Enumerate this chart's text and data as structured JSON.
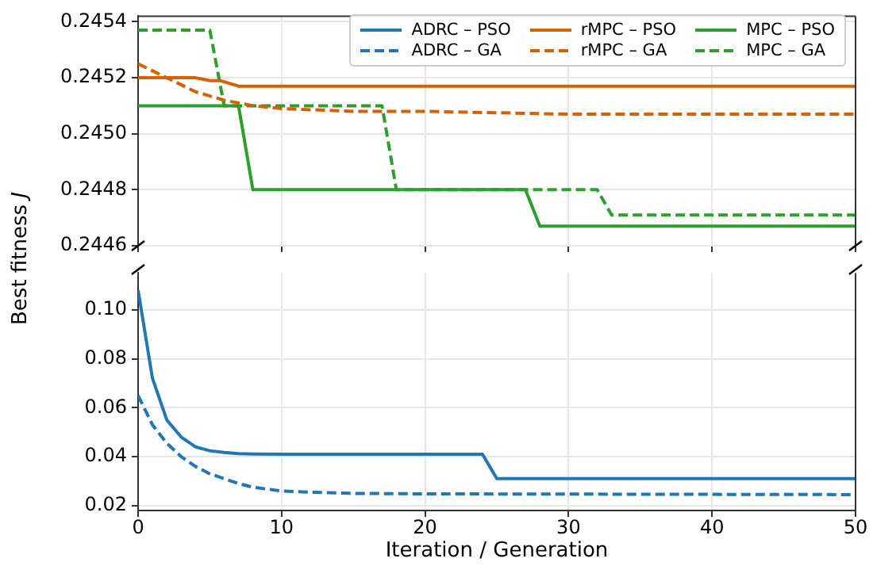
{
  "chart_data": [
    {
      "type": "line",
      "ylabel": "Best fitness J",
      "xlim": [
        0,
        50
      ],
      "xticks": [
        0,
        10,
        20,
        30,
        40,
        50
      ],
      "ylim": [
        0.2446,
        0.24542
      ],
      "yticks": [
        0.2446,
        0.2448,
        {
          "value": 0.245,
          "label": "0.2450"
        },
        0.2452,
        0.2454
      ],
      "grid": true,
      "legend": "top right",
      "tick_labels": "y",
      "marker": "none",
      "series": [
        {
          "name": "rMPC – PSO",
          "color": "#d95f02",
          "line_style": "solid",
          "x": [
            0,
            4,
            5,
            5.7,
            7,
            50
          ],
          "values": [
            0.2452,
            0.2452,
            0.24519,
            0.24519,
            0.24517,
            0.24517
          ]
        },
        {
          "name": "rMPC – GA",
          "color": "#d95f02",
          "line_style": "dashed",
          "x": [
            0,
            2,
            4,
            6,
            8,
            10,
            15,
            20,
            30,
            50
          ],
          "values": [
            0.24525,
            0.2452,
            0.24515,
            0.24512,
            0.2451,
            0.24509,
            0.24508,
            0.24508,
            0.24507,
            0.24507
          ]
        },
        {
          "name": "MPC – PSO",
          "color": "#2ca02c",
          "line_style": "solid",
          "x": [
            0,
            7,
            8,
            27,
            28,
            50
          ],
          "values": [
            0.2451,
            0.2451,
            0.2448,
            0.2448,
            0.24467,
            0.24467
          ]
        },
        {
          "name": "MPC – GA",
          "color": "#2ca02c",
          "line_style": "dashed",
          "x": [
            0,
            5,
            6,
            17,
            18,
            32,
            33,
            50
          ],
          "values": [
            0.24537,
            0.24537,
            0.2451,
            0.2451,
            0.2448,
            0.2448,
            0.24471,
            0.24471
          ]
        }
      ]
    },
    {
      "type": "line",
      "xlabel": "Iteration / Generation",
      "xlim": [
        0,
        50
      ],
      "xticks": [
        0,
        10,
        20,
        30,
        40,
        50
      ],
      "ylim": [
        0.018,
        0.115
      ],
      "yticks": [
        0.02,
        0.04,
        0.06,
        0.08,
        {
          "value": 0.1,
          "label": "0.10"
        }
      ],
      "grid": true,
      "marker": "none",
      "series": [
        {
          "name": "ADRC – PSO",
          "color": "#1f77b4",
          "line_style": "solid",
          "x": [
            0,
            1,
            2,
            3,
            4,
            5,
            6,
            7,
            8,
            10,
            24,
            25,
            50
          ],
          "values": [
            0.108,
            0.072,
            0.055,
            0.048,
            0.044,
            0.0424,
            0.0417,
            0.0412,
            0.0411,
            0.041,
            0.041,
            0.031,
            0.031
          ]
        },
        {
          "name": "ADRC – GA",
          "color": "#1f77b4",
          "line_style": "dashed",
          "x": [
            0,
            1,
            2,
            3,
            4,
            5,
            6,
            7,
            8,
            10,
            12,
            15,
            20,
            50
          ],
          "values": [
            0.065,
            0.053,
            0.0455,
            0.04,
            0.036,
            0.033,
            0.031,
            0.029,
            0.0275,
            0.026,
            0.0255,
            0.025,
            0.0248,
            0.0245
          ]
        }
      ]
    }
  ]
}
